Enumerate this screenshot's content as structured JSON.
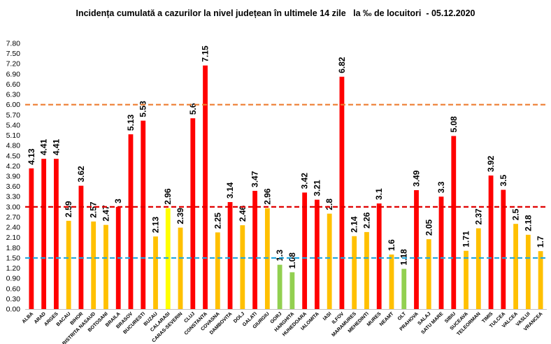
{
  "chart_data": {
    "type": "bar",
    "title": "Incidența cumulată a cazurilor la nivel județean în ultimele 14 zile   la ‰ de locuitori  - 05.12.2020",
    "xlabel": "",
    "ylabel": "",
    "ylim": [
      0,
      7.8
    ],
    "yticks": [
      "0.00",
      "0.30",
      "0.60",
      "0.90",
      "1.20",
      "1.50",
      "1.80",
      "2.10",
      "2.40",
      "2.70",
      "3.00",
      "3.30",
      "3.60",
      "3.90",
      "4.20",
      "4.50",
      "4.80",
      "5.10",
      "5.40",
      "5.70",
      "6.00",
      "6.30",
      "6.60",
      "6.90",
      "7.20",
      "7.50",
      "7.80"
    ],
    "grid": false,
    "legend": "none",
    "categories": [
      "ALBA",
      "ARAD",
      "ARGES",
      "BACAU",
      "BIHOR",
      "BISTRITA NASAUD",
      "BOTOSANI",
      "BRAILA",
      "BRASOV",
      "BUCURESTI",
      "BUZAU",
      "CALARASI",
      "CARAS-SEVERIN",
      "CLUJ",
      "CONSTANTA",
      "COVASNA",
      "DAMBOVITA",
      "DOLJ",
      "GALATI",
      "GIURGIU",
      "GORJ",
      "HARGHITA",
      "HUNEDOARA",
      "IALOMITA",
      "IASI",
      "ILFOV",
      "MARAMURES",
      "MEHEDINTI",
      "MURES",
      "NEAMT",
      "OLT",
      "PRAHOVA",
      "SALAJ",
      "SATU MARE",
      "SIBIU",
      "SUCEAVA",
      "TELEORMAN",
      "TIMIS",
      "TULCEA",
      "VALCEA",
      "VASLUI",
      "VRANCEA"
    ],
    "values": [
      4.13,
      4.41,
      4.41,
      2.59,
      3.62,
      2.57,
      2.47,
      3,
      5.13,
      5.53,
      2.13,
      2.96,
      2.39,
      5.6,
      7.15,
      2.25,
      3.14,
      2.46,
      3.47,
      2.96,
      1.3,
      1.08,
      3.42,
      3.21,
      2.8,
      6.82,
      2.14,
      2.26,
      3.1,
      1.6,
      1.18,
      3.49,
      2.05,
      3.3,
      5.08,
      1.71,
      2.37,
      3.92,
      3.5,
      2.5,
      2.18,
      1.7
    ],
    "value_labels": [
      "4.13",
      "4.41",
      "4.41",
      "2.59",
      "3.62",
      "2.57",
      "2.47",
      "3",
      "5.13",
      "5.53",
      "2.13",
      "2.96",
      "2.39",
      "5.6",
      "7.15",
      "2.25",
      "3.14",
      "2.46",
      "3.47",
      "2.96",
      "1.3",
      "1.08",
      "3.42",
      "3.21",
      "2.8",
      "6.82",
      "2.14",
      "2.26",
      "3.1",
      "1.6",
      "1.18",
      "3.49",
      "2.05",
      "3.3",
      "5.08",
      "1.71",
      "2.37",
      "3.92",
      "3.5",
      "2.5",
      "2.18",
      "1.7"
    ],
    "bar_colors": [
      "#ff0000",
      "#ff0000",
      "#ff0000",
      "#ffc000",
      "#ff0000",
      "#ffc000",
      "#ffc000",
      "#ff0000",
      "#ff0000",
      "#ff0000",
      "#ffc000",
      "#ffff00",
      "#ffc000",
      "#ff0000",
      "#ff0000",
      "#ffc000",
      "#ff0000",
      "#ffc000",
      "#ff0000",
      "#ffc000",
      "#92d050",
      "#92d050",
      "#ff0000",
      "#ff0000",
      "#ffc000",
      "#ff0000",
      "#ffc000",
      "#ffc000",
      "#ff0000",
      "#ffc000",
      "#92d050",
      "#ff0000",
      "#ffc000",
      "#ff0000",
      "#ff0000",
      "#ffc000",
      "#ffc000",
      "#ff0000",
      "#ff0000",
      "#ffc000",
      "#ffc000",
      "#ffc000"
    ],
    "threshold_lines": [
      {
        "value": 6.0,
        "color": "#ed7d31",
        "style": "dashed"
      },
      {
        "value": 3.0,
        "color": "#e00000",
        "style": "dashed"
      },
      {
        "value": 1.5,
        "color": "#1fa7e0",
        "style": "dashed"
      }
    ]
  }
}
